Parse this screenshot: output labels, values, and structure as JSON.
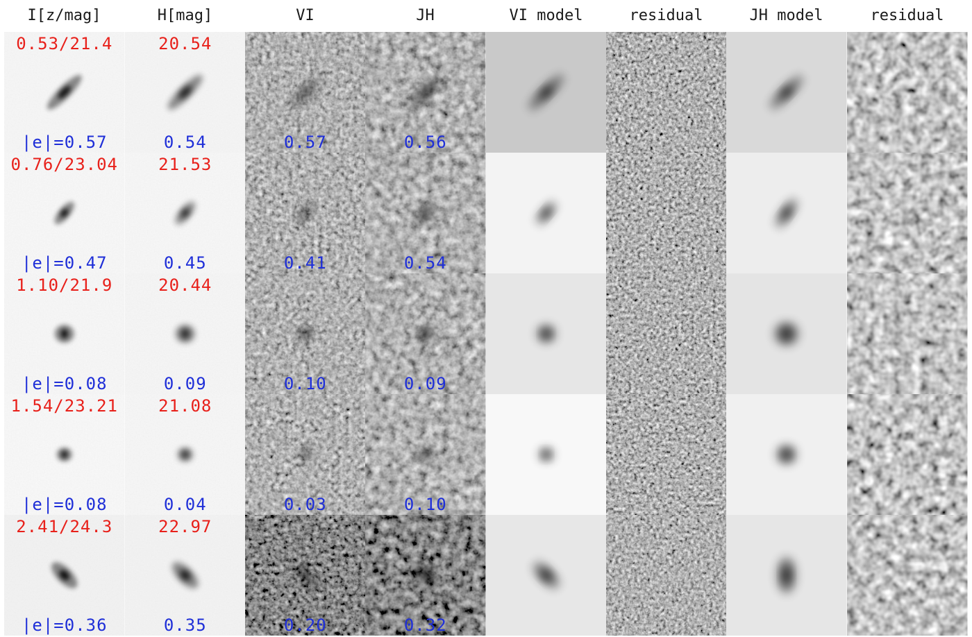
{
  "header": {
    "columns": [
      "I[z/mag]",
      "H[mag]",
      "VI",
      "JH",
      "VI model",
      "residual",
      "JH model",
      "residual"
    ]
  },
  "rows": [
    {
      "top": [
        "0.53/21.4",
        "20.54"
      ],
      "bottom": [
        "|e|=0.57",
        "0.54",
        "0.57",
        "0.56"
      ]
    },
    {
      "top": [
        "0.76/23.04",
        "21.53"
      ],
      "bottom": [
        "|e|=0.47",
        "0.45",
        "0.41",
        "0.54"
      ]
    },
    {
      "top": [
        "1.10/21.9",
        "20.44"
      ],
      "bottom": [
        "|e|=0.08",
        "0.09",
        "0.10",
        "0.09"
      ]
    },
    {
      "top": [
        "1.54/23.21",
        "21.08"
      ],
      "bottom": [
        "|e|=0.08",
        "0.04",
        "0.03",
        "0.10"
      ]
    },
    {
      "top": [
        "2.41/24.3",
        "22.97"
      ],
      "bottom": [
        "|e|=0.36",
        "0.35",
        "0.20",
        "0.32"
      ]
    }
  ],
  "colors": {
    "redshift_text": "#e8201a",
    "ellipticity_text": "#1f2fd8"
  }
}
